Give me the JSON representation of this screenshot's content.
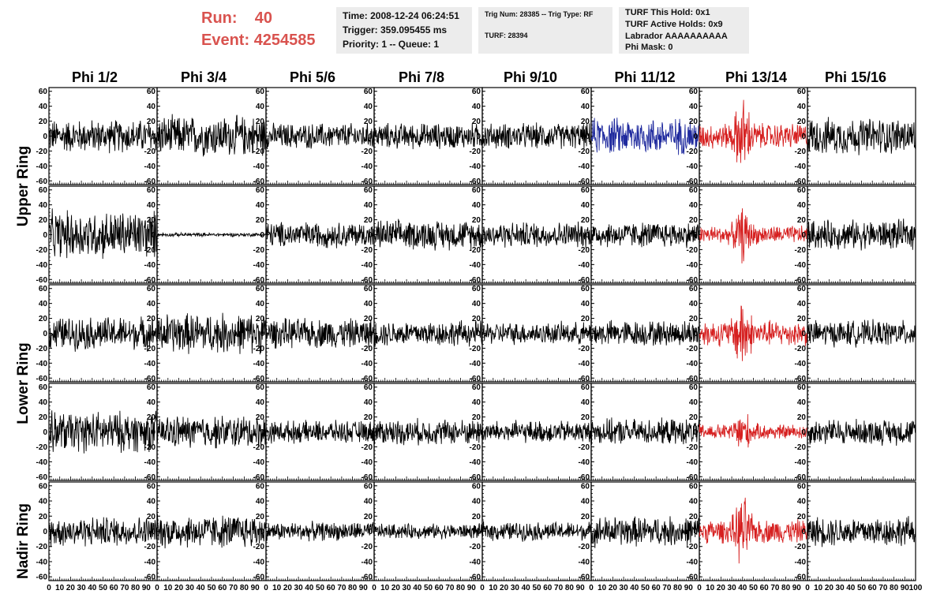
{
  "run": {
    "label": "Run:",
    "value": "40"
  },
  "event": {
    "label": "Event:",
    "value": "4254585"
  },
  "info_time": {
    "time": "Time: 2008-12-24 06:24:51",
    "trigger": "Trigger: 359.095455 ms",
    "priority": "Priority: 1 -- Queue: 1"
  },
  "info_trig": {
    "trig": "Trig Num: 28385 -- Trig Type: RF",
    "turf": "TURF: 28394"
  },
  "info_turf": {
    "this_hold": "TURF This Hold: 0x1",
    "active_holds": "TURF Active Holds: 0x9",
    "labrador": "Labrador AAAAAAAAAA",
    "phi_mask": "Phi Mask: 0"
  },
  "phi_headers": [
    "Phi 1/2",
    "Phi 3/4",
    "Phi 5/6",
    "Phi 7/8",
    "Phi 9/10",
    "Phi 11/12",
    "Phi 13/14",
    "Phi 15/16"
  ],
  "ring_labels": [
    "Upper Ring",
    "Lower Ring",
    "Nadir Ring"
  ],
  "colors": {
    "title": "#d9534f",
    "trace": "#000000",
    "trace_blue": "#1f2a9e",
    "trace_red": "#d62020",
    "info_bg": "#ececec"
  },
  "plots": {
    "y_ticks": [
      60,
      40,
      20,
      0,
      -20,
      -40,
      -60
    ],
    "x_ticks": [
      "0",
      "10",
      "20",
      "30",
      "40",
      "50",
      "60",
      "70",
      "80",
      "90",
      "100"
    ],
    "ylim": [
      -65,
      65
    ],
    "xlim": [
      0,
      100
    ],
    "amplitude": [
      [
        18,
        22,
        14,
        14,
        14,
        20,
        20,
        20
      ],
      [
        26,
        2,
        14,
        16,
        14,
        14,
        14,
        16
      ],
      [
        18,
        22,
        16,
        14,
        12,
        14,
        20,
        14
      ],
      [
        22,
        18,
        12,
        14,
        12,
        14,
        12,
        14
      ],
      [
        16,
        18,
        10,
        8,
        10,
        16,
        18,
        16
      ]
    ],
    "color": [
      [
        "trace",
        "trace",
        "trace",
        "trace",
        "trace",
        "trace_blue",
        "trace_red",
        "trace"
      ],
      [
        "trace",
        "trace",
        "trace",
        "trace",
        "trace",
        "trace",
        "trace_red",
        "trace"
      ],
      [
        "trace",
        "trace",
        "trace",
        "trace",
        "trace",
        "trace",
        "trace_red",
        "trace"
      ],
      [
        "trace",
        "trace",
        "trace",
        "trace",
        "trace",
        "trace",
        "trace_red",
        "trace"
      ],
      [
        "trace",
        "trace",
        "trace",
        "trace",
        "trace",
        "trace",
        "trace_red",
        "trace"
      ]
    ]
  }
}
